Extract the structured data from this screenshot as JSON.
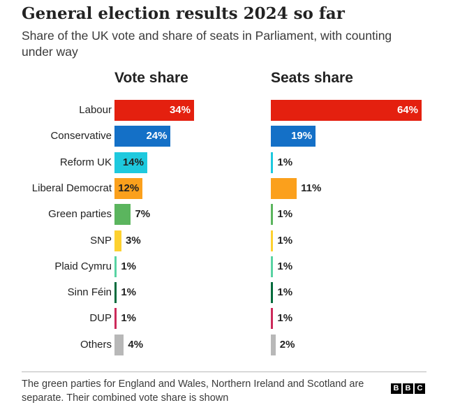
{
  "title": "General election results 2024 so far",
  "subtitle": "Share of the UK vote and share of seats in Parliament, with counting under way",
  "note": "The green parties for England and Wales, Northern Ireland and Scotland are separate. Their combined vote share is shown",
  "logo_letters": [
    "B",
    "B",
    "C"
  ],
  "chart_data": [
    {
      "type": "bar",
      "orientation": "horizontal",
      "title": "Vote share",
      "unit": "%",
      "categories": [
        "Labour",
        "Conservative",
        "Reform UK",
        "Liberal Democrat",
        "Green parties",
        "SNP",
        "Plaid Cymru",
        "Sinn Féin",
        "DUP",
        "Others"
      ],
      "values": [
        34,
        24,
        14,
        12,
        7,
        3,
        1,
        1,
        1,
        4
      ],
      "value_labels": [
        "34%",
        "24%",
        "14%",
        "12%",
        "7%",
        "3%",
        "1%",
        "1%",
        "1%",
        "4%"
      ],
      "colors": [
        "#e4200f",
        "#1470c7",
        "#1ec9de",
        "#fba01c",
        "#5bb55e",
        "#fdd130",
        "#59d3a3",
        "#006b3c",
        "#cc2a5a",
        "#b8b8b8"
      ],
      "grid": false,
      "legend": "none"
    },
    {
      "type": "bar",
      "orientation": "horizontal",
      "title": "Seats share",
      "unit": "%",
      "categories": [
        "Labour",
        "Conservative",
        "Reform UK",
        "Liberal Democrat",
        "Green parties",
        "SNP",
        "Plaid Cymru",
        "Sinn Féin",
        "DUP",
        "Others"
      ],
      "values": [
        64,
        19,
        1,
        11,
        1,
        1,
        1,
        1,
        1,
        2
      ],
      "value_labels": [
        "64%",
        "19%",
        "1%",
        "11%",
        "1%",
        "1%",
        "1%",
        "1%",
        "1%",
        "2%"
      ],
      "colors": [
        "#e4200f",
        "#1470c7",
        "#1ec9de",
        "#fba01c",
        "#5bb55e",
        "#fdd130",
        "#59d3a3",
        "#006b3c",
        "#cc2a5a",
        "#b8b8b8"
      ],
      "grid": false,
      "legend": "none"
    }
  ]
}
